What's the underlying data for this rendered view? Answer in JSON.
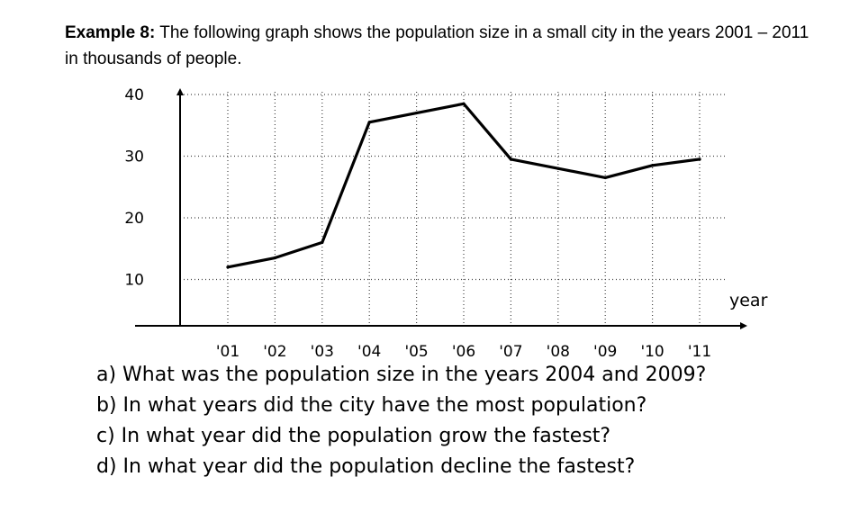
{
  "intro": {
    "label": "Example 8:",
    "text": " The following graph shows the population size in a small city in the years 2001 – 2011 in thousands of people."
  },
  "chart_data": {
    "type": "line",
    "title": "",
    "xlabel": "year",
    "ylabel": "",
    "categories": [
      "'01",
      "'02",
      "'03",
      "'04",
      "'05",
      "'06",
      "'07",
      "'08",
      "'09",
      "'10",
      "'11"
    ],
    "x": [
      2001,
      2002,
      2003,
      2004,
      2005,
      2006,
      2007,
      2008,
      2009,
      2010,
      2011
    ],
    "values": [
      12,
      13.5,
      16,
      35.5,
      37,
      38.5,
      29.5,
      28,
      26.5,
      28.5,
      29.5
    ],
    "yticks": [
      10,
      20,
      30,
      40
    ],
    "ylim": [
      3,
      40
    ],
    "grid": "dotted"
  },
  "questions": [
    "a) What was the population size in the years 2004 and 2009?",
    "b) In what years did the city have the most population?",
    "c) In what year did the population grow the fastest?",
    "d) In what year did the population decline the fastest?"
  ]
}
